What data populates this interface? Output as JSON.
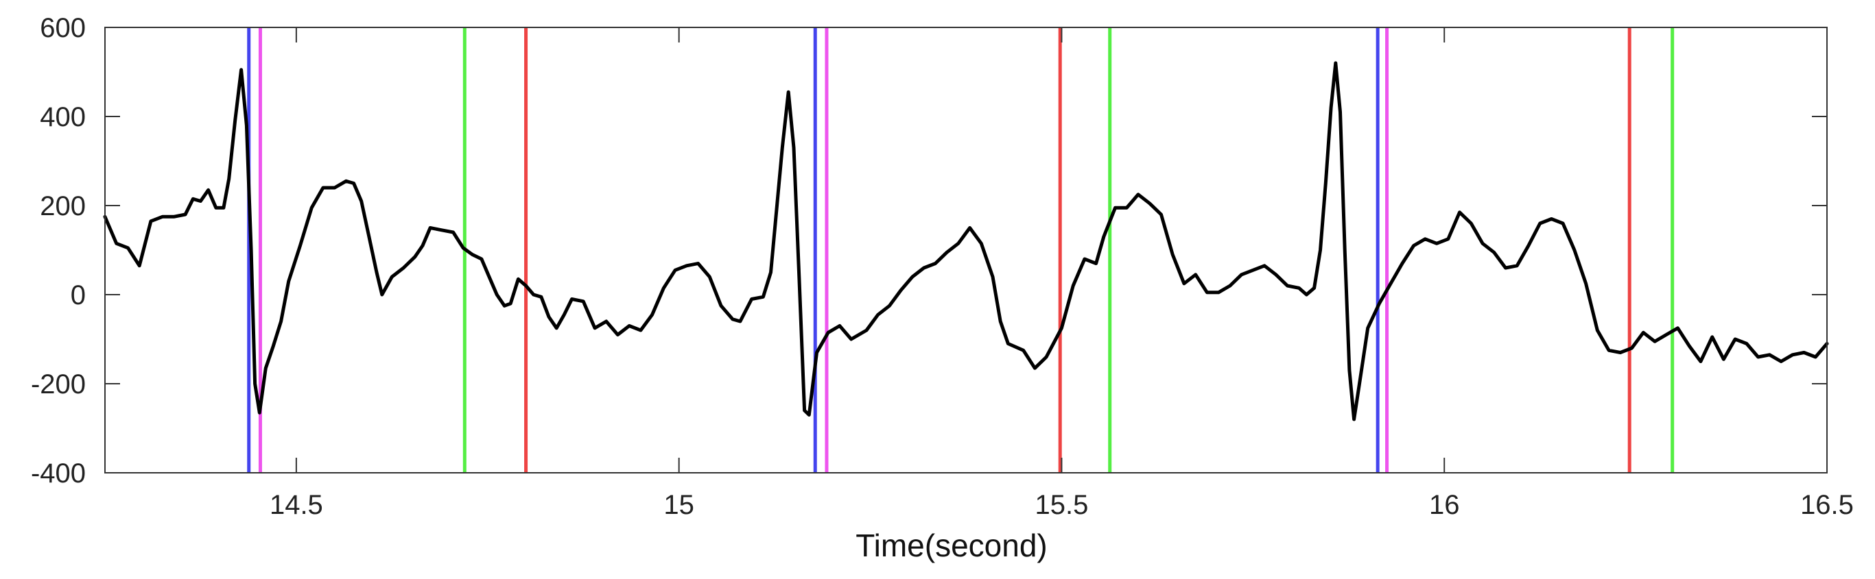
{
  "chart_data": {
    "type": "line",
    "title": "",
    "xlabel": "Time(second)",
    "ylabel": "",
    "xlim": [
      14.25,
      16.5
    ],
    "ylim": [
      -400,
      600
    ],
    "x_ticks": [
      14.5,
      15,
      15.5,
      16,
      16.5
    ],
    "x_tick_labels": [
      "14.5",
      "15",
      "15.5",
      "16",
      "16.5"
    ],
    "y_ticks": [
      -400,
      -200,
      0,
      200,
      400,
      600
    ],
    "y_tick_labels": [
      "-400",
      "-200",
      "0",
      "200",
      "400",
      "600"
    ],
    "grid": false,
    "series": [
      {
        "color": "#000000",
        "points": [
          [
            14.25,
            175
          ],
          [
            14.265,
            115
          ],
          [
            14.28,
            105
          ],
          [
            14.295,
            65
          ],
          [
            14.31,
            165
          ],
          [
            14.325,
            175
          ],
          [
            14.34,
            175
          ],
          [
            14.355,
            180
          ],
          [
            14.365,
            215
          ],
          [
            14.375,
            210
          ],
          [
            14.385,
            235
          ],
          [
            14.395,
            195
          ],
          [
            14.405,
            195
          ],
          [
            14.412,
            260
          ],
          [
            14.42,
            390
          ],
          [
            14.428,
            505
          ],
          [
            14.435,
            380
          ],
          [
            14.441,
            100
          ],
          [
            14.446,
            -200
          ],
          [
            14.452,
            -265
          ],
          [
            14.46,
            -165
          ],
          [
            14.47,
            -115
          ],
          [
            14.48,
            -60
          ],
          [
            14.49,
            30
          ],
          [
            14.505,
            110
          ],
          [
            14.52,
            195
          ],
          [
            14.535,
            240
          ],
          [
            14.55,
            240
          ],
          [
            14.565,
            255
          ],
          [
            14.575,
            250
          ],
          [
            14.585,
            210
          ],
          [
            14.595,
            130
          ],
          [
            14.605,
            50
          ],
          [
            14.612,
            0
          ],
          [
            14.625,
            40
          ],
          [
            14.64,
            60
          ],
          [
            14.655,
            85
          ],
          [
            14.665,
            110
          ],
          [
            14.675,
            150
          ],
          [
            14.69,
            145
          ],
          [
            14.705,
            140
          ],
          [
            14.718,
            105
          ],
          [
            14.73,
            90
          ],
          [
            14.742,
            80
          ],
          [
            14.752,
            40
          ],
          [
            14.762,
            0
          ],
          [
            14.772,
            -25
          ],
          [
            14.78,
            -20
          ],
          [
            14.79,
            35
          ],
          [
            14.8,
            20
          ],
          [
            14.81,
            0
          ],
          [
            14.82,
            -5
          ],
          [
            14.83,
            -50
          ],
          [
            14.84,
            -75
          ],
          [
            14.85,
            -45
          ],
          [
            14.86,
            -10
          ],
          [
            14.875,
            -15
          ],
          [
            14.89,
            -75
          ],
          [
            14.905,
            -60
          ],
          [
            14.92,
            -90
          ],
          [
            14.935,
            -70
          ],
          [
            14.95,
            -80
          ],
          [
            14.965,
            -45
          ],
          [
            14.98,
            15
          ],
          [
            14.995,
            55
          ],
          [
            15.01,
            65
          ],
          [
            15.025,
            70
          ],
          [
            15.04,
            40
          ],
          [
            15.055,
            -25
          ],
          [
            15.07,
            -55
          ],
          [
            15.08,
            -60
          ],
          [
            15.095,
            -10
          ],
          [
            15.11,
            -5
          ],
          [
            15.12,
            50
          ],
          [
            15.128,
            200
          ],
          [
            15.135,
            330
          ],
          [
            15.143,
            455
          ],
          [
            15.15,
            330
          ],
          [
            15.157,
            40
          ],
          [
            15.164,
            -260
          ],
          [
            15.17,
            -270
          ],
          [
            15.18,
            -130
          ],
          [
            15.195,
            -85
          ],
          [
            15.21,
            -70
          ],
          [
            15.225,
            -100
          ],
          [
            15.245,
            -80
          ],
          [
            15.26,
            -45
          ],
          [
            15.275,
            -25
          ],
          [
            15.29,
            10
          ],
          [
            15.305,
            40
          ],
          [
            15.32,
            60
          ],
          [
            15.335,
            70
          ],
          [
            15.35,
            95
          ],
          [
            15.365,
            115
          ],
          [
            15.38,
            150
          ],
          [
            15.395,
            115
          ],
          [
            15.41,
            40
          ],
          [
            15.42,
            -60
          ],
          [
            15.43,
            -110
          ],
          [
            15.45,
            -125
          ],
          [
            15.465,
            -165
          ],
          [
            15.48,
            -140
          ],
          [
            15.5,
            -75
          ],
          [
            15.515,
            20
          ],
          [
            15.53,
            80
          ],
          [
            15.545,
            70
          ],
          [
            15.555,
            130
          ],
          [
            15.57,
            195
          ],
          [
            15.585,
            195
          ],
          [
            15.6,
            225
          ],
          [
            15.615,
            205
          ],
          [
            15.63,
            180
          ],
          [
            15.645,
            90
          ],
          [
            15.66,
            25
          ],
          [
            15.675,
            45
          ],
          [
            15.69,
            5
          ],
          [
            15.705,
            5
          ],
          [
            15.72,
            20
          ],
          [
            15.735,
            45
          ],
          [
            15.75,
            55
          ],
          [
            15.765,
            65
          ],
          [
            15.78,
            45
          ],
          [
            15.795,
            20
          ],
          [
            15.81,
            15
          ],
          [
            15.82,
            0
          ],
          [
            15.83,
            15
          ],
          [
            15.838,
            100
          ],
          [
            15.845,
            250
          ],
          [
            15.852,
            420
          ],
          [
            15.858,
            520
          ],
          [
            15.864,
            410
          ],
          [
            15.87,
            100
          ],
          [
            15.876,
            -170
          ],
          [
            15.882,
            -280
          ],
          [
            15.89,
            -190
          ],
          [
            15.9,
            -75
          ],
          [
            15.915,
            -20
          ],
          [
            15.93,
            25
          ],
          [
            15.945,
            70
          ],
          [
            15.96,
            110
          ],
          [
            15.975,
            125
          ],
          [
            15.99,
            115
          ],
          [
            16.005,
            125
          ],
          [
            16.02,
            185
          ],
          [
            16.035,
            160
          ],
          [
            16.05,
            115
          ],
          [
            16.065,
            95
          ],
          [
            16.08,
            60
          ],
          [
            16.095,
            65
          ],
          [
            16.11,
            110
          ],
          [
            16.125,
            160
          ],
          [
            16.14,
            170
          ],
          [
            16.155,
            160
          ],
          [
            16.17,
            100
          ],
          [
            16.185,
            25
          ],
          [
            16.2,
            -80
          ],
          [
            16.215,
            -125
          ],
          [
            16.23,
            -130
          ],
          [
            16.245,
            -120
          ],
          [
            16.26,
            -85
          ],
          [
            16.275,
            -105
          ],
          [
            16.29,
            -90
          ],
          [
            16.305,
            -75
          ],
          [
            16.32,
            -115
          ],
          [
            16.335,
            -150
          ],
          [
            16.35,
            -95
          ],
          [
            16.365,
            -145
          ],
          [
            16.38,
            -100
          ],
          [
            16.395,
            -110
          ],
          [
            16.41,
            -140
          ],
          [
            16.425,
            -135
          ],
          [
            16.44,
            -150
          ],
          [
            16.455,
            -135
          ],
          [
            16.47,
            -130
          ],
          [
            16.485,
            -140
          ],
          [
            16.5,
            -110
          ]
        ]
      }
    ],
    "markers": [
      {
        "x": 14.438,
        "color": "#4444ee"
      },
      {
        "x": 14.453,
        "color": "#ee55ee"
      },
      {
        "x": 14.72,
        "color": "#55ee44"
      },
      {
        "x": 14.8,
        "color": "#ee4444"
      },
      {
        "x": 15.178,
        "color": "#4444ee"
      },
      {
        "x": 15.193,
        "color": "#ee55ee"
      },
      {
        "x": 15.498,
        "color": "#ee4444"
      },
      {
        "x": 15.563,
        "color": "#55ee44"
      },
      {
        "x": 15.913,
        "color": "#4444ee"
      },
      {
        "x": 15.925,
        "color": "#ee55ee"
      },
      {
        "x": 16.242,
        "color": "#ee4444"
      },
      {
        "x": 16.298,
        "color": "#55ee44"
      }
    ]
  }
}
